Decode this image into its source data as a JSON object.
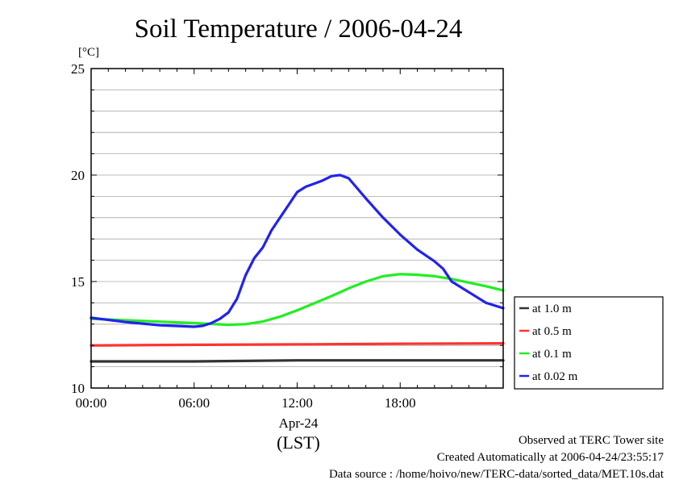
{
  "chart_data": {
    "type": "line",
    "title": "Soil Temperature / 2006-04-24",
    "ylabel": "[°C]",
    "xlabel_date": "Apr-24",
    "xlabel_unit": "(LST)",
    "ylim": [
      10,
      25
    ],
    "xlim": [
      0,
      24
    ],
    "yticks": [
      "10",
      "15",
      "20",
      "25"
    ],
    "xticks": [
      "00:00",
      "06:00",
      "12:00",
      "18:00"
    ],
    "legend_position": "right",
    "grid": true,
    "series": [
      {
        "name": "at 1.0 m",
        "color": "#333333",
        "x": [
          0,
          6,
          12,
          18,
          24
        ],
        "y": [
          11.25,
          11.25,
          11.3,
          11.3,
          11.3
        ]
      },
      {
        "name": "at 0.5 m",
        "color": "#ff3333",
        "x": [
          0,
          6,
          12,
          18,
          24
        ],
        "y": [
          12.0,
          12.03,
          12.05,
          12.08,
          12.1
        ]
      },
      {
        "name": "at 0.1 m",
        "color": "#22ee22",
        "x": [
          0,
          3,
          6,
          8,
          9,
          10,
          11,
          12,
          13,
          14,
          15,
          16,
          17,
          18,
          19,
          20,
          21,
          22,
          23,
          24
        ],
        "y": [
          13.25,
          13.15,
          13.05,
          12.97,
          13.0,
          13.12,
          13.35,
          13.65,
          13.98,
          14.32,
          14.68,
          15.0,
          15.25,
          15.35,
          15.32,
          15.25,
          15.12,
          14.95,
          14.78,
          14.58
        ]
      },
      {
        "name": "at 0.02 m",
        "color": "#2222ee",
        "x": [
          0,
          2,
          4,
          6,
          6.5,
          7,
          7.5,
          8,
          8.5,
          9,
          9.5,
          10,
          10.5,
          11,
          11.5,
          12,
          12.5,
          13,
          13.5,
          14,
          14.5,
          15,
          16,
          17,
          18,
          19,
          20,
          20.5,
          21,
          22,
          23,
          24
        ],
        "y": [
          13.3,
          13.1,
          12.95,
          12.88,
          12.92,
          13.05,
          13.25,
          13.55,
          14.2,
          15.3,
          16.1,
          16.6,
          17.4,
          18.0,
          18.6,
          19.2,
          19.45,
          19.6,
          19.75,
          19.95,
          20.0,
          19.85,
          18.9,
          18.0,
          17.2,
          16.5,
          15.95,
          15.6,
          15.0,
          14.5,
          14.0,
          13.75
        ]
      }
    ]
  },
  "footer": {
    "observed": "Observed at TERC Tower site",
    "created": "Created Automatically at 2006-04-24/23:55:17",
    "source": "Data source : /home/hoivo/new/TERC-data/sorted_data/MET.10s.dat"
  }
}
